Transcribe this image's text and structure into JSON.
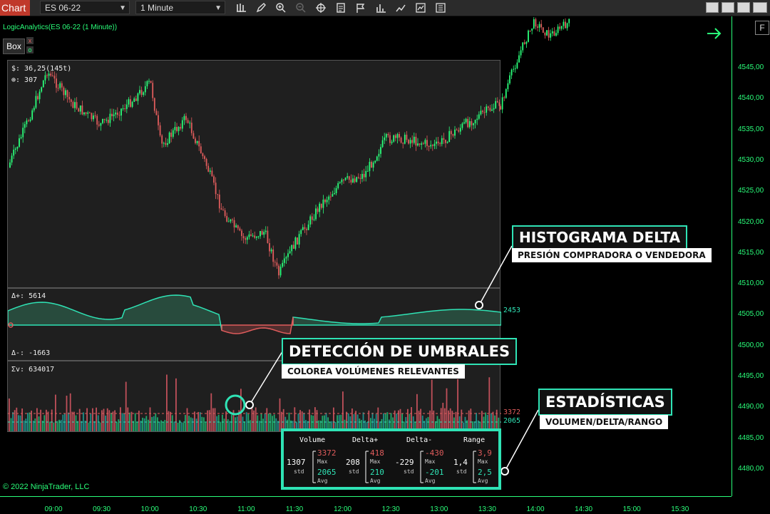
{
  "toolbar": {
    "tab_label": "Chart",
    "instrument": "ES 06-22",
    "interval": "1 Minute",
    "panel_label": "F"
  },
  "chart": {
    "indicator_title": "LogicAnalytics(ES 06-22 (1 Minute))",
    "box_button": "Box",
    "price_info": "$: 36,25(145t)",
    "count_info": "⊕: 307",
    "delta_plus": "Δ+: 5614",
    "delta_minus": "Δ-: -1663",
    "delta_value": "2453",
    "volume_sum": "Σv: 634017",
    "volume_high": "3372",
    "volume_avg": "2065",
    "copyright": "© 2022 NinjaTrader, LLC",
    "price_ticks": [
      "4545,00",
      "4540,00",
      "4535,00",
      "4530,00",
      "4525,00",
      "4520,00",
      "4515,00",
      "4510,00",
      "4505,00",
      "4500,00",
      "4495,00",
      "4490,00",
      "4485,00",
      "4480,00"
    ],
    "time_ticks": [
      "09:00",
      "09:30",
      "10:00",
      "10:30",
      "11:00",
      "11:30",
      "12:00",
      "12:30",
      "13:00",
      "13:30",
      "14:00",
      "14:30",
      "15:00",
      "15:30"
    ]
  },
  "callouts": {
    "histogram": {
      "title": "HISTOGRAMA DELTA",
      "subtitle": "PRESIÓN COMPRADORA O VENDEDORA"
    },
    "threshold": {
      "title": "DETECCIÓN DE UMBRALES",
      "subtitle": "COLOREA VOLÚMENES RELEVANTES"
    },
    "stats": {
      "title": "ESTADÍSTICAS",
      "subtitle": "VOLUMEN/DELTA/RANGO"
    }
  },
  "stats": {
    "headers": [
      "Volume",
      "Delta+",
      "Delta-",
      "Range"
    ],
    "std_label": "std",
    "max_label": "Max",
    "avg_label": "Avg",
    "volume": {
      "std": "1307",
      "max": "3372",
      "avg": "2065"
    },
    "delta_plus": {
      "std": "208",
      "max": "418",
      "avg": "210"
    },
    "delta_minus": {
      "std": "-229",
      "max": "-430",
      "avg": "-201"
    },
    "range": {
      "std": "1,4",
      "max": "3,9",
      "avg": "2,5"
    }
  },
  "colors": {
    "up": "#2aff7a",
    "down": "#e05c5c",
    "accent": "#2fe3b5"
  }
}
